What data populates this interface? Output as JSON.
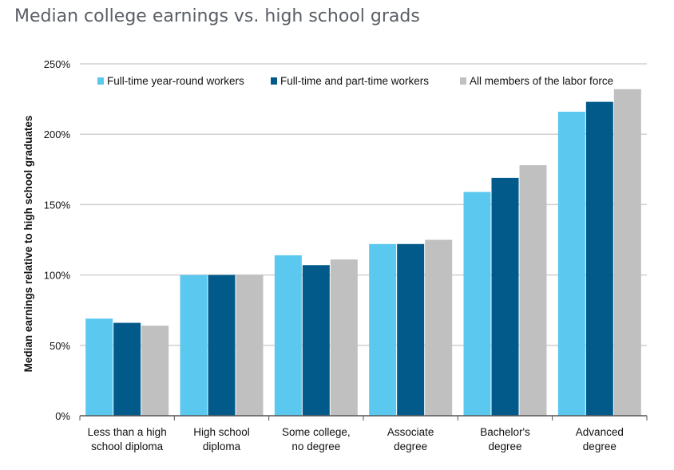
{
  "title": "Median college earnings vs. high school grads",
  "chart_data": {
    "type": "bar",
    "title": "Median college earnings vs. high school grads",
    "xlabel": "",
    "ylabel": "Median earnings relative to high school graduates",
    "ylim": [
      0,
      250
    ],
    "yticks": [
      "0%",
      "50%",
      "100%",
      "150%",
      "200%",
      "250%"
    ],
    "grid": true,
    "legend_position": "top",
    "categories": [
      [
        "Less than a high",
        "school diploma"
      ],
      [
        "High school",
        "diploma"
      ],
      [
        "Some college,",
        "no degree"
      ],
      [
        "Associate",
        "degree"
      ],
      [
        "Bachelor's",
        "degree"
      ],
      [
        "Advanced",
        "degree"
      ]
    ],
    "series": [
      {
        "name": "Full-time year-round workers",
        "color": "#5bc8f0",
        "values": [
          69,
          100,
          114,
          122,
          159,
          216
        ]
      },
      {
        "name": "Full-time and part-time workers",
        "color": "#015a8a",
        "values": [
          66,
          100,
          107,
          122,
          169,
          223
        ]
      },
      {
        "name": "All members of the labor force",
        "color": "#c0c0c0",
        "values": [
          64,
          100,
          111,
          125,
          178,
          232
        ]
      }
    ]
  }
}
